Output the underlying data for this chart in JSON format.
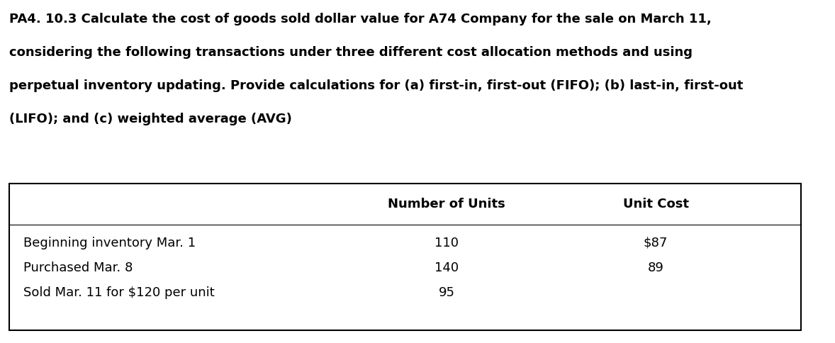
{
  "title_lines": [
    "PA4. 10.3 Calculate the cost of goods sold dollar value for A74 Company for the sale on March 11,",
    "considering the following transactions under three different cost allocation methods and using",
    "perpetual inventory updating. Provide calculations for (a) first-in, first-out (FIFO); (b) last-in, first-out",
    "(LIFO); and (c) weighted average (AVG)"
  ],
  "col_headers": [
    "Number of Units",
    "Unit Cost"
  ],
  "rows": [
    {
      "label": "Beginning inventory Mar. 1",
      "units": "110",
      "cost": "$87"
    },
    {
      "label": "Purchased Mar. 8",
      "units": "140",
      "cost": "89"
    },
    {
      "label": "Sold Mar. 11 for $120 per unit",
      "units": "95",
      "cost": ""
    }
  ],
  "background_color": "#ffffff",
  "text_color": "#000000",
  "title_fontsize": 13.0,
  "table_fontsize": 13.0
}
